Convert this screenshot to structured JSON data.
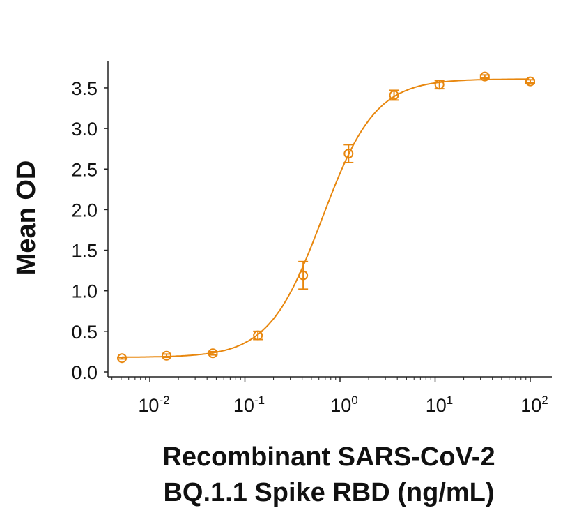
{
  "chart_data": {
    "type": "scatter",
    "title": "",
    "xlabel_lines": [
      "Recombinant SARS-CoV-2",
      "BQ.1.1 Spike RBD (ng/mL)"
    ],
    "ylabel": "Mean OD",
    "x_scale": "log",
    "xlim": [
      0.004,
      150
    ],
    "ylim": [
      0,
      3.8
    ],
    "x_ticks": [
      {
        "base": "10",
        "exp": "-2",
        "value": 0.01
      },
      {
        "base": "10",
        "exp": "-1",
        "value": 0.1
      },
      {
        "base": "10",
        "exp": "0",
        "value": 1
      },
      {
        "base": "10",
        "exp": "1",
        "value": 10
      },
      {
        "base": "10",
        "exp": "2",
        "value": 100
      }
    ],
    "y_ticks": [
      "0.0",
      "0.5",
      "1.0",
      "1.5",
      "2.0",
      "2.5",
      "3.0",
      "3.5"
    ],
    "grid": false,
    "color": "#E8870E",
    "marker": "open-circle",
    "points": [
      {
        "x": 0.0051,
        "y": 0.17,
        "err": 0.01
      },
      {
        "x": 0.015,
        "y": 0.2,
        "err": 0.02
      },
      {
        "x": 0.046,
        "y": 0.23,
        "err": 0.02
      },
      {
        "x": 0.137,
        "y": 0.45,
        "err": 0.05
      },
      {
        "x": 0.41,
        "y": 1.19,
        "err": 0.17
      },
      {
        "x": 1.23,
        "y": 2.69,
        "err": 0.11
      },
      {
        "x": 3.7,
        "y": 3.41,
        "err": 0.06
      },
      {
        "x": 11.1,
        "y": 3.54,
        "err": 0.05
      },
      {
        "x": 33.3,
        "y": 3.64,
        "err": 0.02
      },
      {
        "x": 100,
        "y": 3.58,
        "err": 0.02
      }
    ],
    "fit": {
      "model": "4PL",
      "bottom": 0.18,
      "top": 3.61,
      "ec50": 0.65,
      "hill": 1.55
    }
  }
}
